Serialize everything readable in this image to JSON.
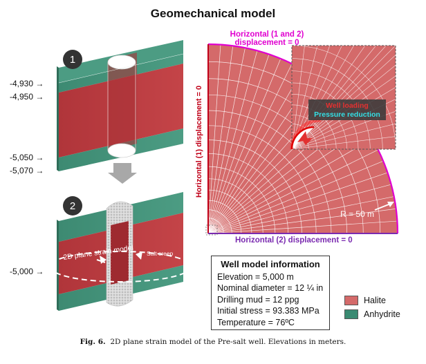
{
  "title": "Geomechanical model",
  "elevations": {
    "e1": "-4,930",
    "e2": "-4,950",
    "e3": "-5,050",
    "e4": "-5,070",
    "e5": "-5,000"
  },
  "steps": {
    "step1": "1",
    "step2": "2"
  },
  "panel2_labels": {
    "plane_strain": "2D plane strain model",
    "salt_creep": "Salt creep"
  },
  "boundary": {
    "top_line1": "Horizontal (1 and 2)",
    "top_line2": "displacement = 0",
    "left": "Horizontal (1) displacement = 0",
    "bottom": "Horizontal (2) displacement = 0"
  },
  "zoom_labels": {
    "well_loading": "Well loading",
    "pressure_reduction": "Pressure reduction"
  },
  "radius_label": "R = 50 m",
  "well_info": {
    "heading": "Well model information",
    "lines": [
      "Elevation = 5,000 m",
      "Nominal diameter = 12 ¼ in",
      "Drilling mud = 12 ppg",
      "Initial stress = 93.383 MPa",
      "Temperature = 76ºC"
    ]
  },
  "legend": [
    {
      "label": "Halite",
      "color": "#d46a6a"
    },
    {
      "label": "Anhydrite",
      "color": "#3a8a72"
    }
  ],
  "caption": {
    "prefix": "Fig. 6.",
    "text": "2D plane strain model of the Pre-salt well. Elevations in meters."
  },
  "colors": {
    "halite_3d": "#b83a3e",
    "anhydrite_3d": "#3d8a72",
    "mesh_fill": "#d46a6a",
    "top_bc": "#e000d0",
    "left_bc": "#c00018",
    "bottom_bc": "#7a2ab0"
  }
}
